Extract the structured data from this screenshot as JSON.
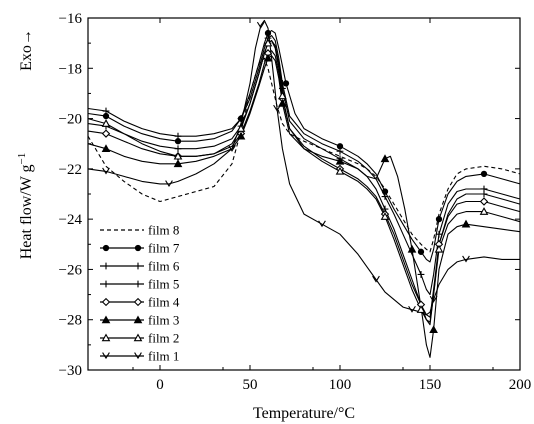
{
  "chart_data": {
    "type": "line",
    "title": "",
    "xlabel": "Temperature/°C",
    "ylabel": "Heat flow/W g",
    "ylabel_superscript": "−1",
    "exo_label": "Exo→",
    "xlim": [
      -40,
      200
    ],
    "ylim": [
      -30,
      -16
    ],
    "xticks": [
      0,
      50,
      100,
      150,
      200
    ],
    "xtick_labels": [
      "0",
      "50",
      "100",
      "150",
      "200"
    ],
    "yticks": [
      -30,
      -28,
      -26,
      -24,
      -22,
      -20,
      -18,
      -16
    ],
    "ytick_labels": [
      "−30",
      "−28",
      "−26",
      "−24",
      "−22",
      "−20",
      "−18",
      "−16"
    ],
    "grid": false,
    "legend_position": "bottom-left",
    "series": [
      {
        "name": "film 8",
        "marker": "none",
        "dash": true,
        "x": [
          -40,
          -30,
          -20,
          -10,
          0,
          10,
          20,
          30,
          40,
          45,
          50,
          55,
          58,
          60,
          62,
          65,
          68,
          72,
          80,
          90,
          100,
          110,
          115,
          120,
          125,
          130,
          135,
          140,
          145,
          148,
          150,
          152,
          155,
          160,
          165,
          170,
          180,
          190,
          200
        ],
        "y": [
          -20.7,
          -21.9,
          -22.5,
          -23.0,
          -23.3,
          -23.1,
          -22.9,
          -22.7,
          -21.8,
          -20.5,
          -19.0,
          -17.8,
          -17.6,
          -18.0,
          -18.6,
          -19.5,
          -20.2,
          -20.6,
          -20.9,
          -21.2,
          -21.5,
          -21.8,
          -22.0,
          -22.3,
          -22.8,
          -23.4,
          -24.0,
          -24.6,
          -25.0,
          -25.2,
          -25.3,
          -24.8,
          -23.8,
          -22.8,
          -22.2,
          -22.0,
          -21.9,
          -22.0,
          -22.2
        ]
      },
      {
        "name": "film 7",
        "marker": "circle",
        "dash": false,
        "x": [
          -40,
          -30,
          -20,
          -10,
          0,
          10,
          20,
          30,
          40,
          45,
          50,
          55,
          58,
          60,
          62,
          64,
          66,
          70,
          75,
          80,
          90,
          100,
          110,
          115,
          120,
          125,
          130,
          135,
          140,
          145,
          148,
          150,
          152,
          155,
          160,
          165,
          170,
          180,
          190,
          200
        ],
        "y": [
          -19.8,
          -19.9,
          -20.3,
          -20.6,
          -20.8,
          -20.9,
          -20.9,
          -20.8,
          -20.5,
          -20.0,
          -19.0,
          -17.8,
          -17.0,
          -16.6,
          -16.5,
          -16.6,
          -17.2,
          -18.6,
          -19.8,
          -20.4,
          -20.8,
          -21.1,
          -21.5,
          -21.8,
          -22.2,
          -22.9,
          -23.6,
          -24.2,
          -24.8,
          -25.3,
          -25.6,
          -25.7,
          -25.2,
          -24.0,
          -23.0,
          -22.5,
          -22.3,
          -22.2,
          -22.4,
          -22.6
        ]
      },
      {
        "name": "film 6",
        "marker": "plus",
        "dash": false,
        "x": [
          -40,
          -30,
          -20,
          -10,
          0,
          10,
          20,
          30,
          40,
          45,
          50,
          55,
          58,
          60,
          62,
          64,
          66,
          68,
          72,
          80,
          90,
          100,
          110,
          115,
          120,
          125,
          130,
          135,
          140,
          145,
          148,
          150,
          152,
          155,
          160,
          165,
          170,
          180,
          190,
          200
        ],
        "y": [
          -19.6,
          -19.7,
          -20.1,
          -20.4,
          -20.6,
          -20.7,
          -20.7,
          -20.6,
          -20.4,
          -20.0,
          -19.2,
          -18.0,
          -17.2,
          -16.8,
          -16.7,
          -16.9,
          -17.6,
          -18.6,
          -19.9,
          -20.6,
          -21.0,
          -21.3,
          -21.7,
          -22.0,
          -22.4,
          -23.1,
          -23.8,
          -24.6,
          -25.4,
          -26.2,
          -26.8,
          -27.0,
          -26.2,
          -24.6,
          -23.4,
          -22.9,
          -22.8,
          -22.8,
          -23.0,
          -23.2
        ]
      },
      {
        "name": "film 5",
        "marker": "plus",
        "dash": false,
        "x": [
          -40,
          -30,
          -20,
          -10,
          0,
          10,
          20,
          30,
          40,
          45,
          50,
          55,
          58,
          60,
          62,
          64,
          66,
          68,
          72,
          80,
          90,
          100,
          110,
          115,
          120,
          125,
          130,
          135,
          140,
          145,
          148,
          150,
          152,
          155,
          160,
          165,
          170,
          180,
          190,
          200
        ],
        "y": [
          -20.2,
          -20.3,
          -20.6,
          -20.9,
          -21.1,
          -21.2,
          -21.2,
          -21.1,
          -20.8,
          -20.3,
          -19.4,
          -18.2,
          -17.4,
          -17.0,
          -16.9,
          -17.1,
          -17.8,
          -18.8,
          -20.1,
          -20.8,
          -21.2,
          -21.6,
          -22.0,
          -22.3,
          -22.8,
          -23.6,
          -24.4,
          -25.4,
          -26.4,
          -27.4,
          -28.0,
          -28.2,
          -27.0,
          -25.0,
          -23.8,
          -23.2,
          -23.0,
          -23.0,
          -23.2,
          -23.4
        ]
      },
      {
        "name": "film 4",
        "marker": "diamond",
        "dash": false,
        "x": [
          -40,
          -30,
          -20,
          -10,
          0,
          10,
          20,
          30,
          40,
          45,
          50,
          55,
          58,
          60,
          62,
          64,
          66,
          68,
          72,
          80,
          90,
          100,
          110,
          115,
          120,
          125,
          130,
          135,
          140,
          145,
          148,
          150,
          152,
          155,
          160,
          165,
          170,
          180,
          190,
          200
        ],
        "y": [
          -20.5,
          -20.6,
          -20.9,
          -21.2,
          -21.4,
          -21.5,
          -21.5,
          -21.4,
          -21.1,
          -20.6,
          -19.7,
          -18.6,
          -17.8,
          -17.4,
          -17.3,
          -17.5,
          -18.2,
          -19.2,
          -20.4,
          -21.1,
          -21.6,
          -22.0,
          -22.4,
          -22.7,
          -23.1,
          -23.8,
          -24.6,
          -25.6,
          -26.6,
          -27.4,
          -27.8,
          -27.9,
          -26.8,
          -25.0,
          -23.9,
          -23.4,
          -23.3,
          -23.3,
          -23.5,
          -23.7
        ]
      },
      {
        "name": "film 3",
        "marker": "triangle-filled",
        "dash": false,
        "x": [
          -40,
          -30,
          -20,
          -10,
          0,
          10,
          20,
          30,
          40,
          45,
          50,
          55,
          58,
          60,
          62,
          64,
          66,
          68,
          72,
          80,
          90,
          100,
          110,
          115,
          120,
          125,
          128,
          132,
          136,
          140,
          145,
          148,
          150,
          152,
          155,
          160,
          165,
          170,
          180,
          190,
          200
        ],
        "y": [
          -21.0,
          -21.2,
          -21.5,
          -21.7,
          -21.8,
          -21.8,
          -21.7,
          -21.5,
          -21.2,
          -20.7,
          -19.8,
          -18.7,
          -18.0,
          -17.6,
          -17.5,
          -17.7,
          -18.4,
          -19.4,
          -20.6,
          -21.2,
          -21.5,
          -21.7,
          -22.0,
          -22.3,
          -22.4,
          -21.6,
          -21.5,
          -22.3,
          -23.6,
          -25.2,
          -27.5,
          -29.0,
          -29.5,
          -28.4,
          -26.0,
          -24.6,
          -24.3,
          -24.2,
          -24.3,
          -24.4,
          -24.5
        ]
      },
      {
        "name": "film 2",
        "marker": "triangle-open",
        "dash": false,
        "x": [
          -40,
          -30,
          -20,
          -10,
          0,
          10,
          20,
          30,
          40,
          45,
          50,
          55,
          58,
          60,
          62,
          64,
          66,
          68,
          72,
          80,
          90,
          100,
          110,
          115,
          120,
          125,
          130,
          135,
          140,
          145,
          148,
          150,
          152,
          155,
          160,
          165,
          170,
          180,
          190,
          200
        ],
        "y": [
          -20.0,
          -20.2,
          -20.6,
          -21.0,
          -21.3,
          -21.5,
          -21.5,
          -21.4,
          -21.0,
          -20.4,
          -19.4,
          -18.2,
          -17.4,
          -17.0,
          -16.9,
          -17.2,
          -18.0,
          -19.1,
          -20.4,
          -21.2,
          -21.7,
          -22.1,
          -22.5,
          -22.8,
          -23.2,
          -23.9,
          -24.8,
          -25.8,
          -26.8,
          -27.6,
          -28.0,
          -28.1,
          -27.0,
          -25.2,
          -24.2,
          -23.8,
          -23.7,
          -23.7,
          -23.9,
          -24.1
        ]
      },
      {
        "name": "film 1",
        "marker": "v",
        "dash": false,
        "x": [
          -40,
          -30,
          -20,
          -10,
          0,
          5,
          10,
          20,
          30,
          40,
          45,
          50,
          53,
          56,
          58,
          60,
          62,
          65,
          68,
          72,
          80,
          90,
          100,
          110,
          115,
          120,
          125,
          130,
          135,
          140,
          145,
          148,
          150,
          152,
          155,
          160,
          165,
          170,
          180,
          190,
          200
        ],
        "y": [
          -22.0,
          -22.1,
          -22.3,
          -22.5,
          -22.6,
          -22.6,
          -22.5,
          -22.2,
          -21.8,
          -21.2,
          -20.2,
          -18.6,
          -17.2,
          -16.3,
          -16.1,
          -16.4,
          -17.6,
          -19.6,
          -21.2,
          -22.6,
          -23.8,
          -24.2,
          -24.6,
          -25.4,
          -25.9,
          -26.4,
          -26.9,
          -27.2,
          -27.5,
          -27.6,
          -27.7,
          -27.8,
          -27.7,
          -27.2,
          -26.6,
          -26.0,
          -25.7,
          -25.6,
          -25.5,
          -25.6,
          -25.6
        ]
      }
    ]
  }
}
